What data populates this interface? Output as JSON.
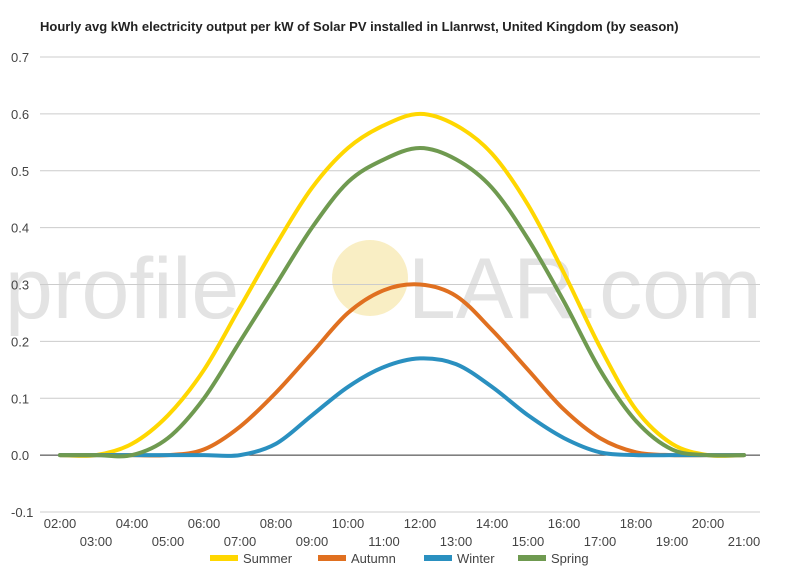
{
  "watermark": {
    "left": "profile",
    "right": "LAR.com"
  },
  "chart_data": {
    "type": "line",
    "title": "Hourly avg kWh electricity output per kW of Solar PV installed in Llanrwst, United Kingdom (by season)",
    "xlabel": "",
    "ylabel": "",
    "x": [
      "02:00",
      "03:00",
      "04:00",
      "05:00",
      "06:00",
      "07:00",
      "08:00",
      "09:00",
      "10:00",
      "11:00",
      "12:00",
      "13:00",
      "14:00",
      "15:00",
      "16:00",
      "17:00",
      "18:00",
      "19:00",
      "20:00",
      "21:00"
    ],
    "xticks_top": [
      "02:00",
      "04:00",
      "06:00",
      "08:00",
      "10:00",
      "12:00",
      "14:00",
      "16:00",
      "18:00",
      "20:00"
    ],
    "xticks_bottom": [
      "03:00",
      "05:00",
      "07:00",
      "09:00",
      "11:00",
      "13:00",
      "15:00",
      "17:00",
      "19:00",
      "21:00"
    ],
    "ylim": [
      -0.1,
      0.7
    ],
    "yticks": [
      "-0.1",
      "0.0",
      "0.1",
      "0.2",
      "0.3",
      "0.4",
      "0.5",
      "0.6",
      "0.7"
    ],
    "grid": true,
    "legend_position": "bottom",
    "series": [
      {
        "name": "Summer",
        "color": "#ffd700",
        "values": [
          0,
          0,
          0.02,
          0.07,
          0.15,
          0.26,
          0.37,
          0.47,
          0.54,
          0.58,
          0.6,
          0.58,
          0.53,
          0.44,
          0.32,
          0.19,
          0.08,
          0.02,
          0,
          0
        ]
      },
      {
        "name": "Autumn",
        "color": "#e07020",
        "values": [
          0,
          0,
          0,
          0,
          0.01,
          0.05,
          0.11,
          0.18,
          0.25,
          0.29,
          0.3,
          0.28,
          0.22,
          0.15,
          0.08,
          0.03,
          0.005,
          0,
          0,
          0
        ]
      },
      {
        "name": "Winter",
        "color": "#2a90c0",
        "values": [
          0,
          0,
          0,
          0,
          0,
          0,
          0.02,
          0.07,
          0.12,
          0.155,
          0.17,
          0.16,
          0.12,
          0.07,
          0.03,
          0.005,
          0,
          0,
          0,
          0
        ]
      },
      {
        "name": "Spring",
        "color": "#6f9a50",
        "values": [
          0,
          0,
          0,
          0.03,
          0.1,
          0.2,
          0.3,
          0.4,
          0.48,
          0.52,
          0.54,
          0.52,
          0.47,
          0.38,
          0.27,
          0.15,
          0.06,
          0.01,
          0,
          0
        ]
      }
    ]
  }
}
